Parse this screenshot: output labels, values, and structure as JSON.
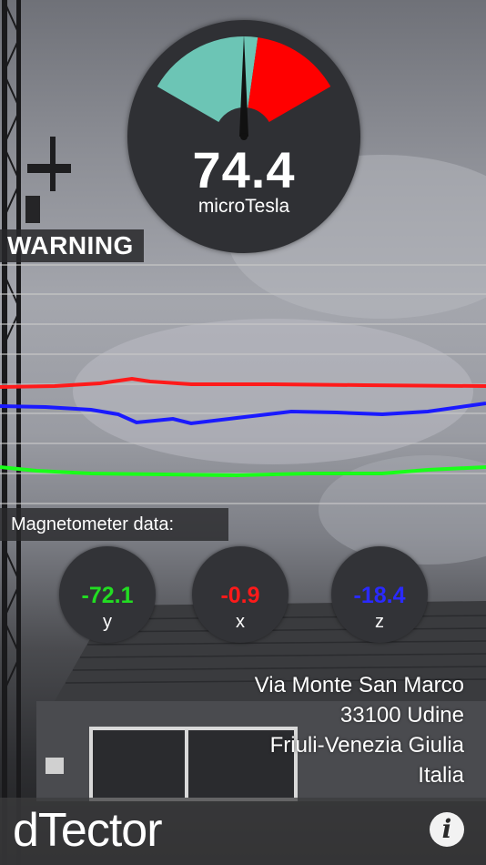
{
  "gauge": {
    "value": "74.4",
    "unit": "microTesla",
    "level": 0.5,
    "zone_colors": {
      "safe": "#6cc5b5",
      "danger": "#ff0000",
      "needle": "#111111"
    }
  },
  "warning": {
    "label": "WARNING"
  },
  "graph": {
    "series": [
      {
        "axis": "x",
        "color": "#ff1a1a"
      },
      {
        "axis": "z",
        "color": "#1a1aff"
      },
      {
        "axis": "y",
        "color": "#1aff1a"
      }
    ]
  },
  "magnetometer": {
    "label": "Magnetometer data:",
    "axes": [
      {
        "name": "y",
        "value": "-72.1",
        "color": "#22dd22"
      },
      {
        "name": "x",
        "value": "-0.9",
        "color": "#ff1a1a"
      },
      {
        "name": "z",
        "value": "-18.4",
        "color": "#2a2aff"
      }
    ]
  },
  "address": {
    "line1": "Via Monte San Marco",
    "line2": "33100 Udine",
    "line3": "Friuli-Venezia Giulia",
    "line4": "Italia"
  },
  "app": {
    "name": "dTector",
    "info_icon": "info-icon"
  }
}
